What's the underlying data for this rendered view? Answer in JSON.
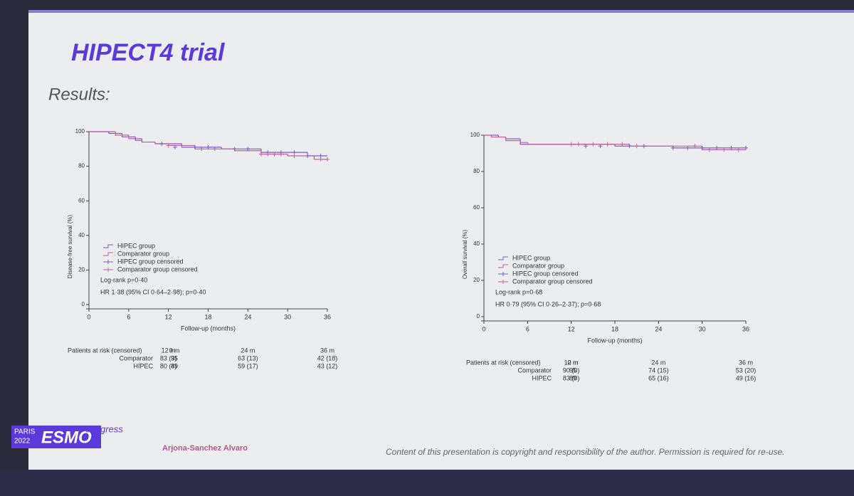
{
  "slide": {
    "title": "HIPECT4 trial",
    "subtitle": "Results:",
    "logo_city": "PARIS",
    "logo_year": "2022",
    "logo_name": "ESMO",
    "logo_word": "congress",
    "author": "Arjona-Sanchez Alvaro",
    "copyright": "Content of this presentation is copyright and responsibility of the author. Permission is required for re-use."
  },
  "chart_data": [
    {
      "type": "line",
      "y_label": "Disease-free survival (%)",
      "x_label": "Follow-up (months)",
      "xlim": [
        0,
        36
      ],
      "ylim": [
        0,
        100
      ],
      "xticks": [
        0,
        6,
        12,
        18,
        24,
        30,
        36
      ],
      "yticks": [
        0,
        20,
        40,
        60,
        80,
        100
      ],
      "series": [
        {
          "name": "HIPEC group",
          "color": "#7a5ac8",
          "x": [
            0,
            3,
            5,
            7,
            8,
            10,
            14,
            20,
            26,
            33,
            36
          ],
          "values": [
            100,
            99,
            97,
            95,
            94,
            93,
            91,
            90,
            88,
            86,
            86
          ]
        },
        {
          "name": "Comparator group",
          "color": "#c0609a",
          "x": [
            0,
            4,
            6,
            8,
            10,
            12,
            16,
            22,
            26,
            30,
            34,
            36
          ],
          "values": [
            100,
            98,
            96,
            94,
            93,
            92,
            90,
            89,
            87,
            86,
            84,
            84
          ]
        }
      ],
      "censored": [
        {
          "name": "HIPEC group censored",
          "color": "#7a5ac8",
          "x": [
            11,
            13,
            16,
            18,
            22,
            24,
            27,
            29,
            31,
            33,
            35
          ],
          "values": [
            93,
            91,
            91,
            91,
            90,
            90,
            88,
            88,
            88,
            86,
            86
          ]
        },
        {
          "name": "Comparator group censored",
          "color": "#c0609a",
          "x": [
            12,
            14,
            17,
            19,
            26,
            27,
            28,
            29,
            31,
            35,
            36
          ],
          "values": [
            92,
            92,
            90,
            90,
            87,
            87,
            87,
            87,
            86,
            84,
            84
          ]
        }
      ],
      "annotations": [
        "Log-rank p=0·40",
        "HR 1·38 (95% CI 0·64–2·98); p=0·40"
      ],
      "risk_table": {
        "header": "Patients at risk (censored)",
        "columns": [
          "0 m",
          "12 m",
          "24 m",
          "36 m"
        ],
        "rows": [
          {
            "label": "Comparator",
            "cells": [
              "95",
              "83 (3)",
              "63 (13)",
              "42 (18)"
            ]
          },
          {
            "label": "HIPEC",
            "cells": [
              "89",
              "80 (4)",
              "59 (17)",
              "43 (12)"
            ]
          }
        ]
      }
    },
    {
      "type": "line",
      "y_label": "Overall survival (%)",
      "x_label": "Follow-up (months)",
      "xlim": [
        0,
        36
      ],
      "ylim": [
        0,
        100
      ],
      "xticks": [
        0,
        6,
        12,
        18,
        24,
        30,
        36
      ],
      "yticks": [
        0,
        20,
        40,
        60,
        80,
        100
      ],
      "series": [
        {
          "name": "HIPEC group",
          "color": "#7a5ac8",
          "x": [
            0,
            2,
            3,
            5,
            18,
            26,
            36
          ],
          "values": [
            100,
            99,
            98,
            95,
            94,
            93,
            93
          ]
        },
        {
          "name": "Comparator group",
          "color": "#c0609a",
          "x": [
            0,
            1,
            3,
            5,
            6,
            20,
            30,
            36
          ],
          "values": [
            100,
            99,
            97,
            96,
            95,
            94,
            92,
            92
          ]
        }
      ],
      "censored": [
        {
          "name": "HIPEC group censored",
          "color": "#7a5ac8",
          "x": [
            14,
            16,
            20,
            22,
            26,
            28,
            30,
            32,
            34,
            36
          ],
          "values": [
            94,
            94,
            94,
            94,
            93,
            93,
            93,
            93,
            93,
            93
          ]
        },
        {
          "name": "Comparator group censored",
          "color": "#c0609a",
          "x": [
            12,
            13,
            15,
            17,
            19,
            21,
            29,
            31,
            33,
            35
          ],
          "values": [
            95,
            95,
            95,
            95,
            95,
            94,
            94,
            92,
            92,
            92
          ]
        }
      ],
      "annotations": [
        "Log-rank p=0·68",
        "HR 0·79 (95% CI 0·26–2·37); p=0·68"
      ],
      "risk_table": {
        "header": "Patients at risk (censored)",
        "columns": [
          "0 m",
          "12 m",
          "24 m",
          "36 m"
        ],
        "rows": [
          {
            "label": "Comparator",
            "cells": [
              "95",
              "90 (0)",
              "74 (15)",
              "53 (20)"
            ]
          },
          {
            "label": "HIPEC",
            "cells": [
              "89",
              "83 (0)",
              "65 (16)",
              "49 (16)"
            ]
          }
        ]
      }
    }
  ]
}
